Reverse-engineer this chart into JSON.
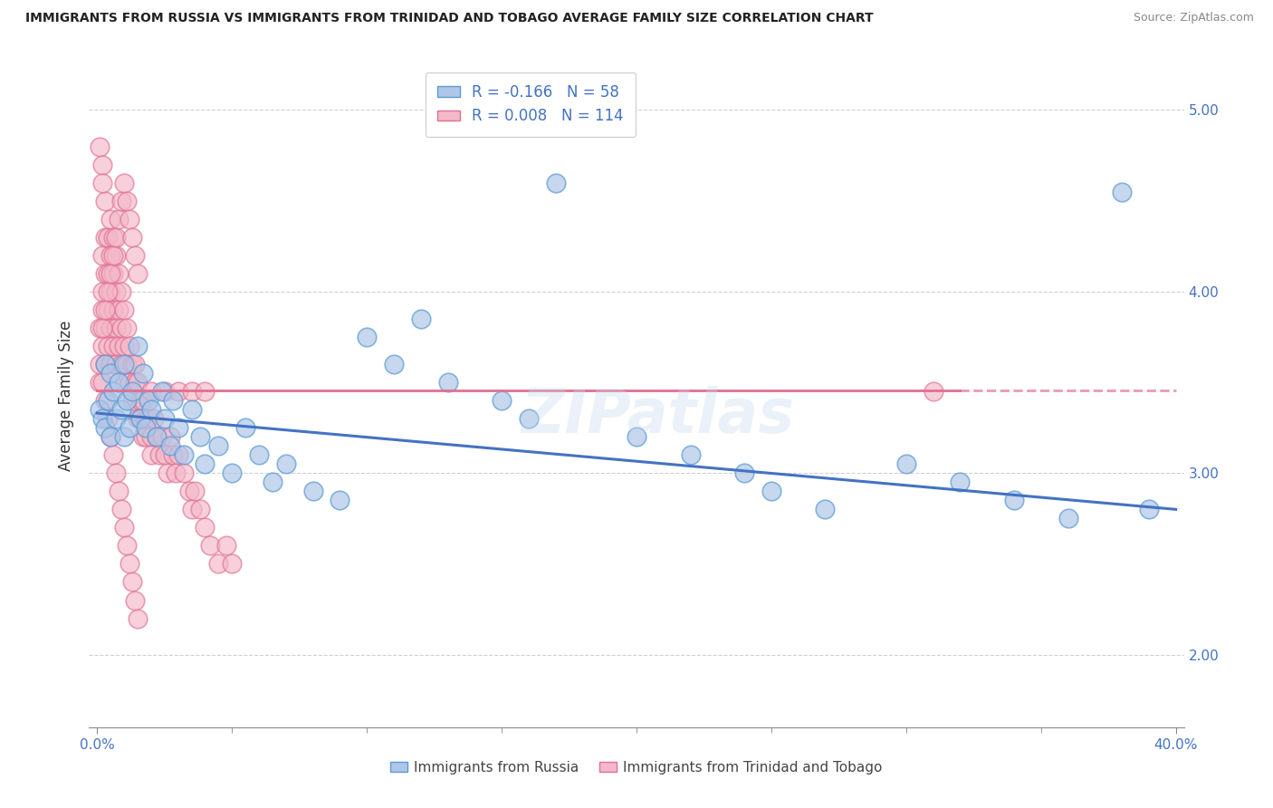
{
  "title": "IMMIGRANTS FROM RUSSIA VS IMMIGRANTS FROM TRINIDAD AND TOBAGO AVERAGE FAMILY SIZE CORRELATION CHART",
  "source": "Source: ZipAtlas.com",
  "ylabel": "Average Family Size",
  "russia_color": "#aec6e8",
  "russia_edge": "#5b9bd5",
  "trinidad_color": "#f4b8c8",
  "trinidad_edge": "#e07090",
  "russia_R": -0.166,
  "russia_N": 58,
  "trinidad_R": 0.008,
  "trinidad_N": 114,
  "russia_line_color": "#4472c4",
  "trinidad_line_color": "#e07090",
  "legend_text_color": "#4472c4",
  "watermark": "ZIPatlas",
  "background_color": "#ffffff",
  "grid_color": "#b0b0b0",
  "russia_scatter_x": [
    0.001,
    0.002,
    0.003,
    0.003,
    0.004,
    0.005,
    0.005,
    0.006,
    0.007,
    0.008,
    0.009,
    0.01,
    0.01,
    0.011,
    0.012,
    0.013,
    0.015,
    0.016,
    0.017,
    0.018,
    0.019,
    0.02,
    0.022,
    0.024,
    0.025,
    0.027,
    0.028,
    0.03,
    0.032,
    0.035,
    0.038,
    0.04,
    0.045,
    0.05,
    0.055,
    0.06,
    0.065,
    0.07,
    0.08,
    0.09,
    0.1,
    0.11,
    0.12,
    0.13,
    0.15,
    0.16,
    0.17,
    0.2,
    0.22,
    0.24,
    0.25,
    0.27,
    0.3,
    0.32,
    0.34,
    0.36,
    0.38,
    0.39
  ],
  "russia_scatter_y": [
    3.35,
    3.3,
    3.6,
    3.25,
    3.4,
    3.55,
    3.2,
    3.45,
    3.3,
    3.5,
    3.35,
    3.6,
    3.2,
    3.4,
    3.25,
    3.45,
    3.7,
    3.3,
    3.55,
    3.25,
    3.4,
    3.35,
    3.2,
    3.45,
    3.3,
    3.15,
    3.4,
    3.25,
    3.1,
    3.35,
    3.2,
    3.05,
    3.15,
    3.0,
    3.25,
    3.1,
    2.95,
    3.05,
    2.9,
    2.85,
    3.75,
    3.6,
    3.85,
    3.5,
    3.4,
    3.3,
    4.6,
    3.2,
    3.1,
    3.0,
    2.9,
    2.8,
    3.05,
    2.95,
    2.85,
    2.75,
    4.55,
    2.8
  ],
  "trinidad_scatter_x": [
    0.001,
    0.001,
    0.001,
    0.002,
    0.002,
    0.002,
    0.002,
    0.003,
    0.003,
    0.003,
    0.003,
    0.003,
    0.004,
    0.004,
    0.004,
    0.004,
    0.005,
    0.005,
    0.005,
    0.005,
    0.005,
    0.006,
    0.006,
    0.006,
    0.006,
    0.007,
    0.007,
    0.007,
    0.007,
    0.008,
    0.008,
    0.008,
    0.009,
    0.009,
    0.009,
    0.01,
    0.01,
    0.01,
    0.011,
    0.011,
    0.012,
    0.012,
    0.013,
    0.013,
    0.014,
    0.014,
    0.015,
    0.015,
    0.016,
    0.016,
    0.017,
    0.017,
    0.018,
    0.018,
    0.019,
    0.02,
    0.02,
    0.021,
    0.022,
    0.023,
    0.024,
    0.025,
    0.026,
    0.027,
    0.028,
    0.029,
    0.03,
    0.032,
    0.034,
    0.035,
    0.036,
    0.038,
    0.04,
    0.042,
    0.045,
    0.048,
    0.05,
    0.002,
    0.003,
    0.004,
    0.005,
    0.006,
    0.007,
    0.008,
    0.009,
    0.01,
    0.011,
    0.012,
    0.013,
    0.014,
    0.015,
    0.002,
    0.003,
    0.004,
    0.005,
    0.006,
    0.007,
    0.008,
    0.009,
    0.01,
    0.011,
    0.012,
    0.013,
    0.014,
    0.015,
    0.02,
    0.025,
    0.03,
    0.035,
    0.04,
    0.001,
    0.002,
    0.002,
    0.31
  ],
  "trinidad_scatter_y": [
    3.5,
    3.6,
    3.8,
    3.7,
    3.9,
    4.0,
    4.2,
    3.8,
    4.1,
    4.3,
    3.6,
    4.5,
    3.9,
    4.1,
    3.7,
    4.3,
    3.8,
    4.0,
    4.2,
    3.6,
    4.4,
    3.7,
    3.9,
    4.1,
    4.3,
    3.8,
    4.0,
    4.2,
    3.6,
    3.9,
    4.1,
    3.7,
    3.8,
    4.0,
    3.6,
    3.7,
    3.9,
    3.5,
    3.8,
    3.6,
    3.7,
    3.5,
    3.6,
    3.4,
    3.6,
    3.5,
    3.5,
    3.3,
    3.4,
    3.3,
    3.4,
    3.2,
    3.3,
    3.2,
    3.3,
    3.2,
    3.1,
    3.3,
    3.2,
    3.1,
    3.2,
    3.1,
    3.0,
    3.2,
    3.1,
    3.0,
    3.1,
    3.0,
    2.9,
    2.8,
    2.9,
    2.8,
    2.7,
    2.6,
    2.5,
    2.6,
    2.5,
    3.5,
    3.4,
    3.3,
    3.2,
    3.1,
    3.0,
    2.9,
    2.8,
    2.7,
    2.6,
    2.5,
    2.4,
    2.3,
    2.2,
    3.8,
    3.9,
    4.0,
    4.1,
    4.2,
    4.3,
    4.4,
    4.5,
    4.6,
    4.5,
    4.4,
    4.3,
    4.2,
    4.1,
    3.45,
    3.45,
    3.45,
    3.45,
    3.45,
    4.8,
    4.7,
    4.6,
    3.45
  ]
}
